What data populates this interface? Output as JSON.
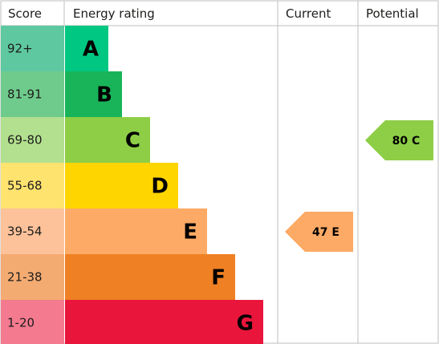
{
  "chart_data": {
    "type": "table",
    "headers": {
      "score": "Score",
      "energy_rating": "Energy rating",
      "current": "Current",
      "potential": "Potential"
    },
    "bands": [
      {
        "score": "92+",
        "letter": "A",
        "score_color": "#5ec8a0",
        "bar_color": "#00c781"
      },
      {
        "score": "81-91",
        "letter": "B",
        "score_color": "#6fcb8c",
        "bar_color": "#19b459"
      },
      {
        "score": "69-80",
        "letter": "C",
        "score_color": "#b2e08f",
        "bar_color": "#8dce46"
      },
      {
        "score": "55-68",
        "letter": "D",
        "score_color": "#ffe36f",
        "bar_color": "#ffd500"
      },
      {
        "score": "39-54",
        "letter": "E",
        "score_color": "#fdc29a",
        "bar_color": "#fcaa65"
      },
      {
        "score": "21-38",
        "letter": "F",
        "score_color": "#f4ab72",
        "bar_color": "#ef8023"
      },
      {
        "score": "1-20",
        "letter": "G",
        "score_color": "#f37a8f",
        "bar_color": "#e9153b"
      }
    ],
    "current": {
      "value": 47,
      "letter": "E",
      "label": "47 E",
      "color": "#fcaa65"
    },
    "potential": {
      "value": 80,
      "letter": "C",
      "label": "80 C",
      "color": "#8dce46"
    }
  }
}
